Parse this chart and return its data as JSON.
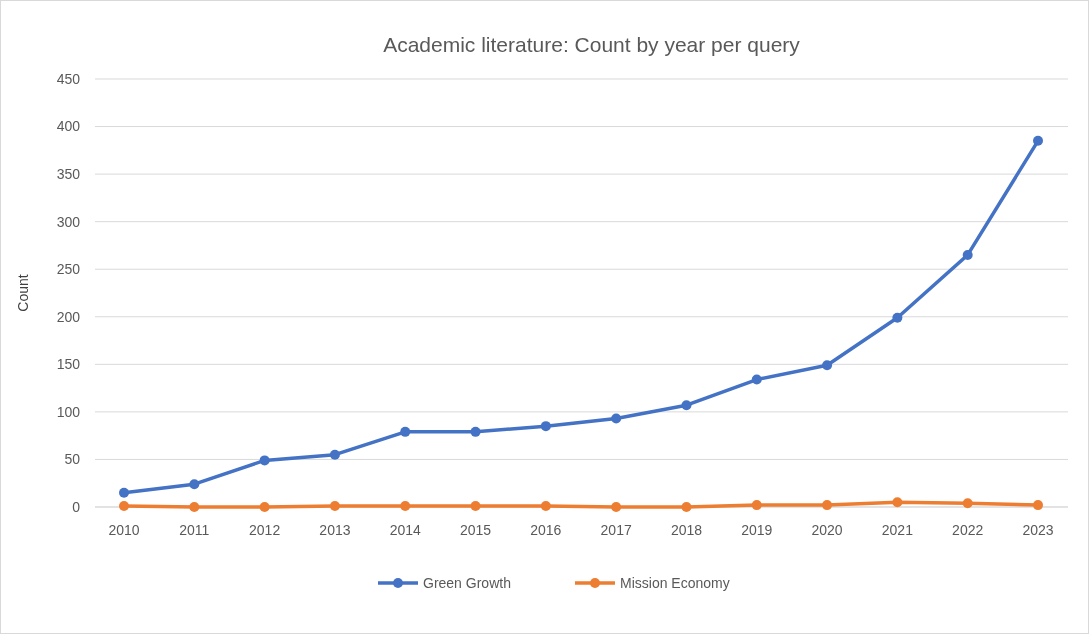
{
  "chart_data": {
    "type": "line",
    "title": "Academic literature: Count by year per query",
    "ylabel": "Count",
    "categories": [
      "2010",
      "2011",
      "2012",
      "2013",
      "2014",
      "2015",
      "2016",
      "2017",
      "2018",
      "2019",
      "2020",
      "2021",
      "2022",
      "2023"
    ],
    "series": [
      {
        "name": "Green Growth",
        "color": "#4472c4",
        "values": [
          15,
          24,
          49,
          55,
          79,
          79,
          85,
          93,
          107,
          134,
          149,
          199,
          265,
          385
        ]
      },
      {
        "name": "Mission Economy",
        "color": "#ed7d31",
        "values": [
          1,
          0,
          0,
          1,
          1,
          1,
          1,
          0,
          0,
          2,
          2,
          5,
          4,
          2
        ]
      }
    ],
    "ylim": [
      0,
      450
    ],
    "yticks": [
      0,
      50,
      100,
      150,
      200,
      250,
      300,
      350,
      400,
      450
    ],
    "grid": "y",
    "legend": "bottom",
    "marker": "circle",
    "line_style": "solid"
  }
}
